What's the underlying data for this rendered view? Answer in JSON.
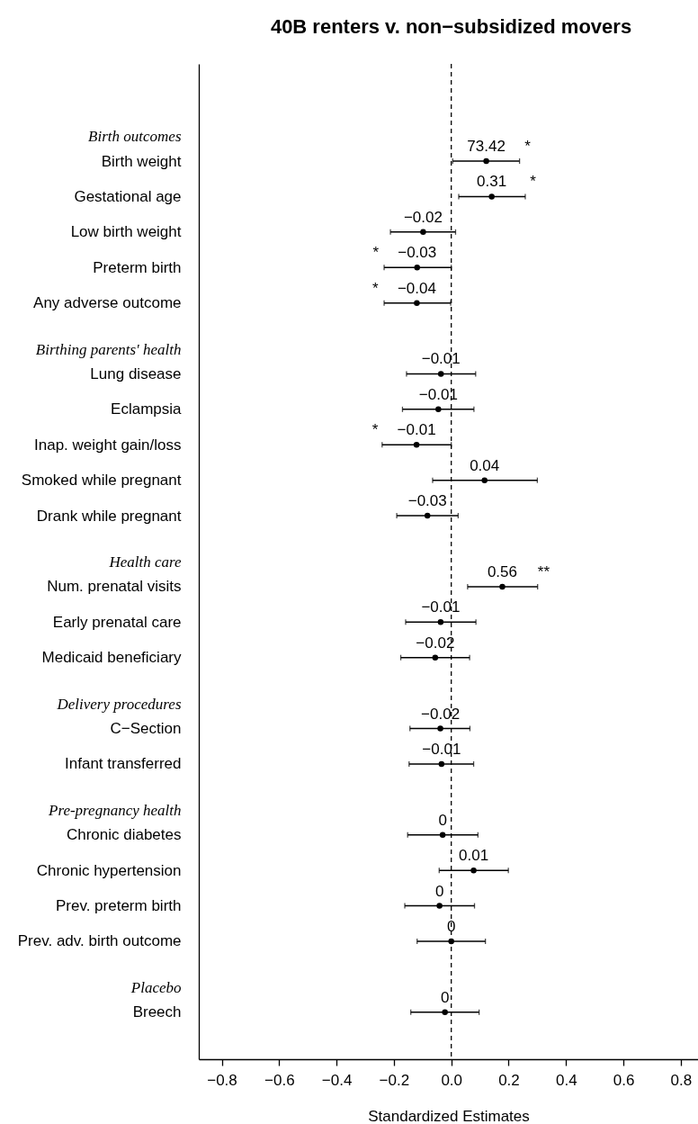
{
  "chart_data": {
    "type": "scatter",
    "orientation": "horizontal",
    "title": "40B renters v. non−subsidized movers",
    "xlabel": "Standardized Estimates",
    "categories": [
      "Birth outcomes",
      "Birth weight",
      "Gestational age",
      "Low birth weight",
      "Preterm birth",
      "Any adverse outcome",
      "Birthing parents' health",
      "Lung disease",
      "Eclampsia",
      "Inap. weight gain/loss",
      "Smoked while pregnant",
      "Drank while pregnant",
      "Health care",
      "Num. prenatal visits",
      "Early prenatal care",
      "Medicaid beneficiary",
      "Delivery procedures",
      "C−Section",
      "Infant transferred",
      "Pre-pregnancy health",
      "Chronic diabetes",
      "Chronic hypertension",
      "Prev. preterm birth",
      "Prev. adv. birth outcome",
      "Placebo",
      "Breech"
    ],
    "series": [
      {
        "color": "#000000",
        "values": [
          null,
          0.122,
          0.141,
          -0.098,
          -0.119,
          -0.12,
          null,
          -0.036,
          -0.045,
          -0.121,
          0.116,
          -0.083,
          null,
          0.178,
          -0.037,
          -0.056,
          null,
          -0.038,
          -0.034,
          null,
          -0.03,
          0.078,
          -0.041,
          0.0,
          null,
          -0.022
        ],
        "errors": [
          null,
          [
            0.005,
            0.238
          ],
          [
            0.026,
            0.258
          ],
          [
            -0.212,
            0.015
          ],
          [
            -0.234,
            0.0
          ],
          [
            -0.234,
            -0.002
          ],
          null,
          [
            -0.156,
            0.085
          ],
          [
            -0.17,
            0.079
          ],
          [
            -0.241,
            0.0
          ],
          [
            -0.065,
            0.3
          ],
          [
            -0.19,
            0.024
          ],
          null,
          [
            0.057,
            0.301
          ],
          [
            -0.159,
            0.086
          ],
          [
            -0.176,
            0.064
          ],
          null,
          [
            -0.144,
            0.065
          ],
          [
            -0.147,
            0.078
          ],
          null,
          [
            -0.152,
            0.093
          ],
          [
            -0.042,
            0.199
          ],
          [
            -0.162,
            0.081
          ],
          [
            -0.119,
            0.119
          ],
          null,
          [
            -0.141,
            0.097
          ]
        ]
      }
    ],
    "xlim": [
      -0.88,
      0.86
    ],
    "xticks": [
      {
        "value": -0.8,
        "label": "−0.8"
      },
      {
        "value": -0.6,
        "label": "−0.6"
      },
      {
        "value": -0.4,
        "label": "−0.4"
      },
      {
        "value": -0.2,
        "label": "−0.2"
      },
      {
        "value": 0,
        "label": "0.0"
      },
      {
        "value": 0.2,
        "label": "0.2"
      },
      {
        "value": 0.4,
        "label": "0.4"
      },
      {
        "value": 0.6,
        "label": "0.6"
      },
      {
        "value": 0.8,
        "label": "0.8"
      }
    ],
    "ref_lines": [
      {
        "axis": "x",
        "value": 0,
        "line_style": "dashed",
        "color": "#000000"
      }
    ],
    "annotations": [
      {
        "text": "73.42",
        "x": 0.122,
        "y": "Birth weight"
      },
      {
        "text": "*",
        "x": 0.122,
        "y": "Birth weight"
      },
      {
        "text": "0.31",
        "x": 0.141,
        "y": "Gestational age"
      },
      {
        "text": "*",
        "x": 0.141,
        "y": "Gestational age"
      },
      {
        "text": "−0.02",
        "x": -0.098,
        "y": "Low birth weight"
      },
      {
        "text": "−0.03",
        "x": -0.119,
        "y": "Preterm birth"
      },
      {
        "text": "*",
        "x": -0.119,
        "y": "Preterm birth"
      },
      {
        "text": "−0.04",
        "x": -0.12,
        "y": "Any adverse outcome"
      },
      {
        "text": "*",
        "x": -0.12,
        "y": "Any adverse outcome"
      },
      {
        "text": "−0.01",
        "x": -0.036,
        "y": "Lung disease"
      },
      {
        "text": "−0.01",
        "x": -0.045,
        "y": "Eclampsia"
      },
      {
        "text": "−0.01",
        "x": -0.121,
        "y": "Inap. weight gain/loss"
      },
      {
        "text": "*",
        "x": -0.121,
        "y": "Inap. weight gain/loss"
      },
      {
        "text": "0.04",
        "x": 0.116,
        "y": "Smoked while pregnant"
      },
      {
        "text": "−0.03",
        "x": -0.083,
        "y": "Drank while pregnant"
      },
      {
        "text": "0.56",
        "x": 0.178,
        "y": "Num. prenatal visits"
      },
      {
        "text": "**",
        "x": 0.178,
        "y": "Num. prenatal visits"
      },
      {
        "text": "−0.01",
        "x": -0.037,
        "y": "Early prenatal care"
      },
      {
        "text": "−0.02",
        "x": -0.056,
        "y": "Medicaid beneficiary"
      },
      {
        "text": "−0.02",
        "x": -0.038,
        "y": "C−Section"
      },
      {
        "text": "−0.01",
        "x": -0.034,
        "y": "Infant transferred"
      },
      {
        "text": "0",
        "x": -0.03,
        "y": "Chronic diabetes"
      },
      {
        "text": "0.01",
        "x": 0.078,
        "y": "Chronic hypertension"
      },
      {
        "text": "0",
        "x": -0.041,
        "y": "Prev. preterm birth"
      },
      {
        "text": "0",
        "x": 0.0,
        "y": "Prev. adv. birth outcome"
      },
      {
        "text": "0",
        "x": -0.022,
        "y": "Breech"
      }
    ],
    "marker": "circle"
  }
}
